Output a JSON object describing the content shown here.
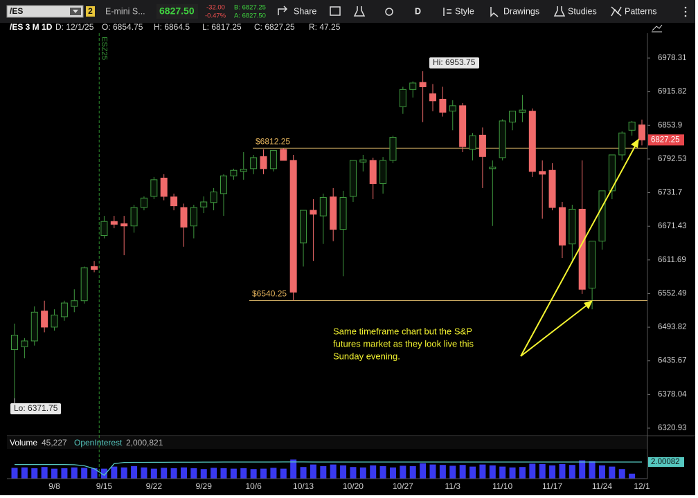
{
  "toolbar": {
    "symbol": "/ES",
    "link_badge": "2",
    "description": "E-mini S...",
    "last": "6827.50",
    "change": "-32.00",
    "change_pct": "-0.47%",
    "bid": "B: 6827.25",
    "ask": "A: 6827.50",
    "buttons": [
      "Share",
      "D",
      "Style",
      "Drawings",
      "Studies",
      "Patterns"
    ]
  },
  "info_bar": [
    "/ES 3 M 1D",
    "D: 12/1/25",
    "O: 6854.75",
    "H: 6864.5",
    "L: 6817.25",
    "C: 6827.25",
    "R: 47.25"
  ],
  "chart_data": [
    {
      "type": "candlestick",
      "log_scale": true,
      "up_color": "#3f9a3f",
      "down_color": "#f06a6a",
      "categories": [
        null,
        null,
        null,
        null,
        "9/8",
        null,
        null,
        null,
        null,
        "9/15",
        null,
        null,
        null,
        null,
        "9/22",
        null,
        null,
        null,
        null,
        "9/29",
        null,
        null,
        null,
        null,
        "10/6",
        null,
        null,
        null,
        null,
        "10/13",
        null,
        null,
        null,
        null,
        "10/20",
        null,
        null,
        null,
        null,
        "10/27",
        null,
        null,
        null,
        null,
        "11/3",
        null,
        null,
        null,
        null,
        "11/10",
        null,
        null,
        null,
        null,
        "11/17",
        null,
        null,
        null,
        null,
        "11/24",
        null,
        null,
        null,
        "12/1"
      ],
      "open": [
        6455,
        6460,
        6470,
        6522,
        6494,
        6512,
        6530,
        6540,
        6600,
        6655,
        6680,
        6676,
        6672,
        6705,
        6725,
        6758,
        6724,
        6705,
        6672,
        6706,
        6714,
        6730,
        6762,
        6770,
        6775,
        6797,
        6775,
        6810,
        6790,
        6642,
        6700,
        6690,
        6724,
        6666,
        6725,
        6787,
        6790,
        6748,
        6790,
        6888,
        6920,
        6933,
        6912,
        6902,
        6880,
        6890,
        6810,
        6836,
        6775,
        6795,
        6860,
        6878,
        6880,
        6770,
        6772,
        6705,
        6640,
        6702,
        6562,
        6645,
        6735,
        6800,
        6845,
        6854.75
      ],
      "high": [
        6500,
        6475,
        6530,
        6540,
        6525,
        6540,
        6560,
        6600,
        6610,
        6690,
        6690,
        6690,
        6710,
        6725,
        6760,
        6765,
        6730,
        6712,
        6710,
        6725,
        6740,
        6765,
        6775,
        6805,
        6800,
        6810,
        6808,
        6812.25,
        6800,
        6700,
        6720,
        6730,
        6740,
        6735,
        6790,
        6800,
        6795,
        6796,
        6835,
        6925,
        6935,
        6953.75,
        6930,
        6925,
        6900,
        6895,
        6840,
        6850,
        6790,
        6865,
        6880,
        6910,
        6885,
        6790,
        6785,
        6715,
        6710,
        6790,
        6640,
        6730,
        6800,
        6843,
        6862,
        6864.5
      ],
      "low": [
        6371.75,
        6440,
        6462,
        6485,
        6488,
        6505,
        6520,
        6535,
        6590,
        6650,
        6668,
        6620,
        6660,
        6700,
        6720,
        6718,
        6700,
        6635,
        6650,
        6695,
        6700,
        6690,
        6755,
        6755,
        6765,
        6765,
        6770,
        6790,
        6540.25,
        6600,
        6610,
        6640,
        6645,
        6583,
        6715,
        6770,
        6720,
        6730,
        6785,
        6875,
        6905,
        6860,
        6880,
        6870,
        6845,
        6805,
        6790,
        6740,
        6672,
        6790,
        6845,
        6860,
        6760,
        6685,
        6700,
        6615,
        6610,
        6552,
        6525,
        6630,
        6720,
        6790,
        6835,
        6817.25
      ],
      "close": [
        6480,
        6470,
        6520,
        6494,
        6515,
        6536,
        6540,
        6598,
        6595,
        6680,
        6675,
        6672,
        6705,
        6722,
        6755,
        6725,
        6708,
        6670,
        6705,
        6715,
        6733,
        6762,
        6772,
        6774,
        6795,
        6775,
        6808,
        6790,
        6555,
        6700,
        6693,
        6723,
        6666,
        6723,
        6790,
        6791,
        6748,
        6790,
        6832,
        6920,
        6932,
        6925,
        6899,
        6878,
        6890,
        6815,
        6835,
        6797,
        6778,
        6862,
        6880,
        6882,
        6770,
        6765,
        6705,
        6638,
        6702,
        6560,
        6645,
        6735,
        6800,
        6840,
        6860,
        6827.25
      ],
      "ylim": [
        6310.4,
        7024.9
      ],
      "yticks": [
        6320.93,
        6378.04,
        6435.67,
        6493.82,
        6552.49,
        6611.69,
        6671.43,
        6731.7,
        6792.53,
        6853.9,
        6915.82,
        6978.31
      ],
      "last_price": 6827.25,
      "levels": [
        {
          "value": 6812.25,
          "label": "$6812.25"
        },
        {
          "value": 6540.25,
          "label": "$6540.25"
        }
      ],
      "high_label": {
        "value": 6953.75,
        "label": "Hi: 6953.75"
      },
      "low_label": {
        "value": 6371.75,
        "label": "Lo: 6371.75"
      },
      "roll_label": "ESZ25",
      "annotation": [
        "Same timeframe chart but the S&P",
        "futures market as they look live this",
        "Sunday evening."
      ]
    },
    {
      "type": "bar",
      "title": "Volume",
      "ylim": [
        0,
        3500000
      ],
      "series": [
        {
          "name": "Volume",
          "color": "#3a3af0",
          "legend_value": "45,227",
          "values": [
            1300000,
            1350000,
            1250000,
            1400000,
            1200000,
            1250000,
            1350000,
            1300000,
            1250000,
            1200000,
            1450000,
            1350000,
            1500000,
            1350000,
            1200000,
            1300000,
            1250000,
            1350000,
            1250000,
            1150000,
            1300000,
            1250000,
            1200000,
            1250000,
            1150000,
            1200000,
            1300000,
            1200000,
            2300000,
            1400000,
            1700000,
            1500000,
            1700000,
            1600000,
            1400000,
            1350000,
            1600000,
            1500000,
            1350000,
            1550000,
            1500000,
            1850000,
            1700000,
            1650000,
            1550000,
            1650000,
            1450000,
            1700000,
            1600000,
            1450000,
            1350000,
            1400000,
            1800000,
            1750000,
            1600000,
            1750000,
            1650000,
            2200000,
            2100000,
            1600000,
            1450000,
            1150000,
            600000,
            45227
          ]
        },
        {
          "name": "OpenInterest",
          "color": "#56c8c0",
          "legend_value": "2,000,821",
          "line": true,
          "values": [
            1700000,
            1700000,
            1700000,
            1700000,
            1700000,
            1700000,
            1680000,
            1550000,
            1200000,
            400000,
            1800000,
            1950000,
            1960000,
            1960000,
            1970000,
            1970000,
            1980000,
            1980000,
            1980000,
            1990000,
            1990000,
            2000000,
            2000000,
            2000000,
            2000000,
            2000000,
            2000000,
            2010000,
            2010000,
            2010000,
            2000000,
            2000000,
            2000000,
            2000000,
            2000000,
            2000000,
            2000000,
            2000000,
            2000000,
            2000000,
            2000000,
            2000000,
            2000000,
            2000000,
            2000000,
            2000000,
            2000000,
            2000000,
            2000000,
            2000000,
            2000000,
            2000000,
            2000000,
            2000000,
            2000000,
            2000000,
            2000000,
            2000000,
            2000000,
            2000000,
            2000000,
            2000000,
            2000000,
            2000821
          ]
        }
      ],
      "last_oi": {
        "value": 2000821,
        "label": "2.00082"
      }
    }
  ]
}
